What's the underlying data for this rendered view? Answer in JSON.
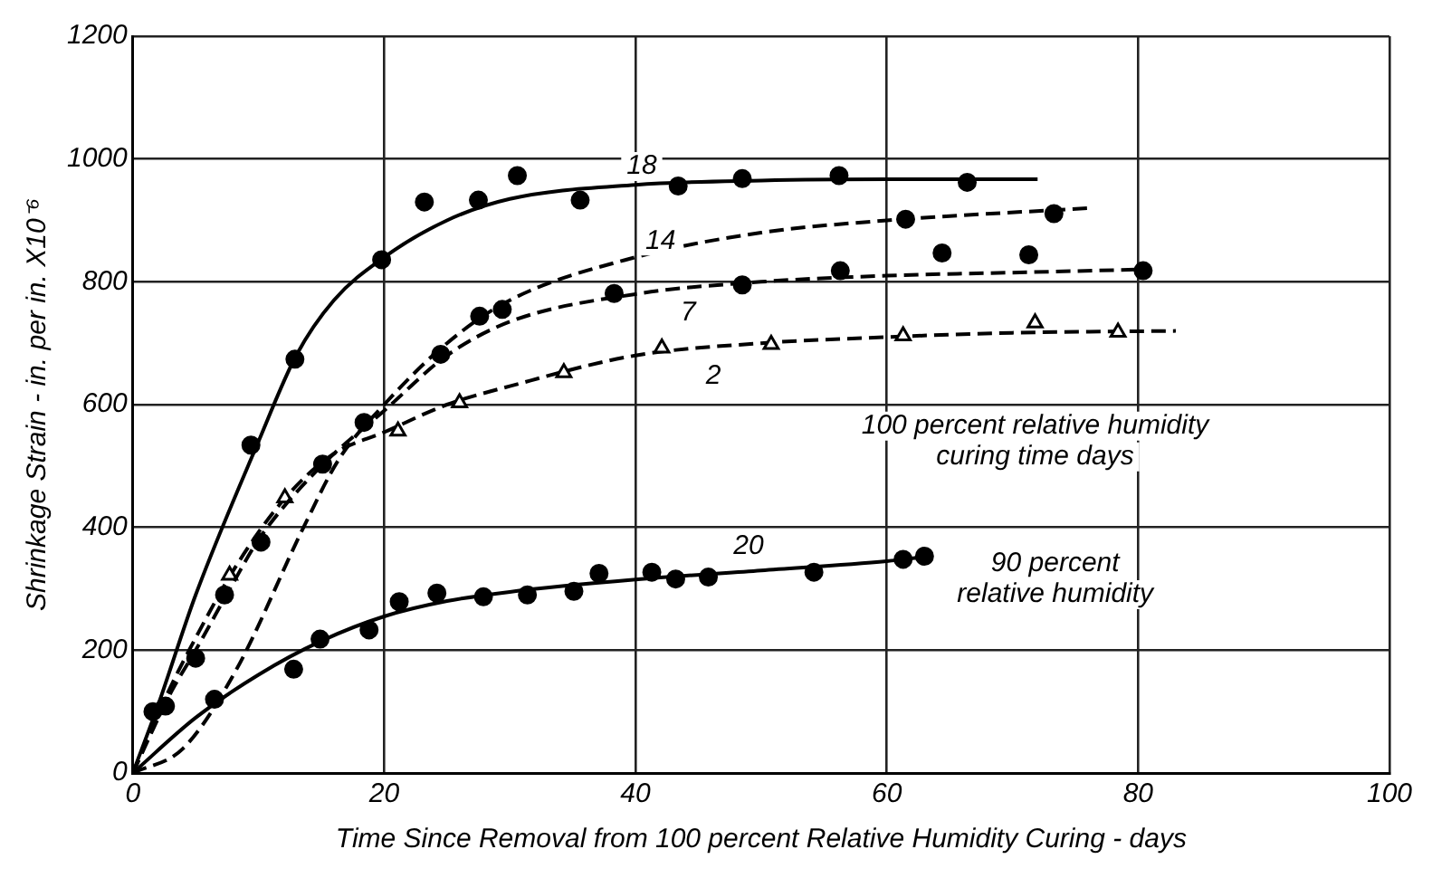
{
  "chart_data": {
    "type": "scatter",
    "xlabel": "Time Since Removal from 100 percent Relative Humidity Curing - days",
    "ylabel": "Shrinkage Strain - in. per in. X10⁻⁶",
    "xlim": [
      0,
      100
    ],
    "xticks": [
      0,
      20,
      40,
      60,
      80,
      100
    ],
    "ylim": [
      0,
      1200
    ],
    "yticks": [
      0,
      200,
      400,
      600,
      800,
      1000,
      1200
    ],
    "grid": true,
    "legend": false,
    "series": [
      {
        "type": "scatter",
        "marker": "circle",
        "color": "#000000",
        "x": [
          1.6,
          9.4,
          12.9,
          19.8,
          23.2,
          27.5,
          30.6,
          35.6,
          43.4,
          48.5,
          56.2,
          66.4
        ],
        "values": [
          100,
          534,
          674,
          836,
          930,
          933,
          973,
          933,
          956,
          968,
          973,
          962
        ]
      },
      {
        "type": "line",
        "marker": "none",
        "line_style": "solid",
        "color": "#000000",
        "x": [
          0,
          2,
          5,
          10,
          13,
          16,
          20,
          25,
          30,
          40,
          50,
          60,
          72
        ],
        "values": [
          0,
          110,
          290,
          540,
          680,
          770,
          840,
          900,
          935,
          958,
          965,
          967,
          967
        ]
      },
      {
        "type": "scatter",
        "marker": "circle",
        "color": "#000000",
        "x": [
          27.6,
          61.5,
          73.3
        ],
        "values": [
          744,
          902,
          911
        ]
      },
      {
        "type": "line",
        "marker": "none",
        "line_style": "dashed",
        "color": "#000000",
        "x": [
          0,
          4,
          8.2,
          13.7,
          16.4,
          20,
          25,
          30,
          40,
          50,
          60,
          76
        ],
        "values": [
          0,
          40,
          167,
          405,
          511,
          600,
          700,
          770,
          840,
          880,
          900,
          920
        ]
      },
      {
        "type": "scatter",
        "marker": "circle",
        "color": "#000000",
        "x": [
          2.6,
          5,
          7.3,
          10.2,
          15.1,
          18.4,
          24.5,
          29.4,
          38.3,
          48.5,
          56.3,
          64.4,
          71.3,
          80.4
        ],
        "values": [
          109,
          187,
          290,
          376,
          503,
          571,
          682,
          755,
          781,
          795,
          818,
          847,
          844,
          818
        ]
      },
      {
        "type": "line",
        "marker": "none",
        "line_style": "dashed",
        "color": "#000000",
        "x": [
          0,
          3,
          5,
          8,
          10,
          15,
          20,
          25,
          30,
          40,
          50,
          60,
          70,
          80
        ],
        "values": [
          0,
          130,
          200,
          310,
          380,
          500,
          590,
          680,
          735,
          780,
          800,
          810,
          815,
          820
        ]
      },
      {
        "type": "scatter",
        "marker": "triangle",
        "color": "#000000",
        "x": [
          7.7,
          12.1,
          21.1,
          26,
          34.3,
          42.1,
          50.8,
          61.3,
          71.8,
          78.4
        ],
        "values": [
          322,
          448,
          557,
          603,
          652,
          692,
          698,
          712,
          733,
          718
        ]
      },
      {
        "type": "line",
        "marker": "none",
        "line_style": "dashed",
        "color": "#000000",
        "x": [
          0,
          3,
          5,
          8,
          12,
          16,
          20,
          25,
          30,
          40,
          50,
          60,
          70,
          83
        ],
        "values": [
          0,
          140,
          220,
          330,
          445,
          520,
          555,
          600,
          630,
          680,
          700,
          710,
          717,
          720
        ]
      },
      {
        "type": "scatter",
        "marker": "circle",
        "color": "#000000",
        "x": [
          6.5,
          12.8,
          14.9,
          18.8,
          21.2,
          24.2,
          27.9,
          31.4,
          35.1,
          37.1,
          41.3,
          43.2,
          45.8,
          54.2,
          61.3,
          63
        ],
        "values": [
          120,
          169,
          218,
          233,
          279,
          293,
          287,
          290,
          296,
          325,
          327,
          316,
          319,
          327,
          348,
          353
        ]
      },
      {
        "type": "line",
        "marker": "none",
        "line_style": "solid",
        "color": "#000000",
        "x": [
          0,
          5,
          10,
          15,
          20,
          25,
          30,
          40,
          50,
          60,
          63
        ],
        "values": [
          0,
          90,
          160,
          215,
          255,
          280,
          295,
          315,
          330,
          345,
          352
        ]
      }
    ],
    "annotations": [
      "18",
      "14",
      "7",
      "2",
      "20",
      "100 percent relative humidity\ncuring time days",
      "90 percent\nrelative humidity"
    ]
  }
}
